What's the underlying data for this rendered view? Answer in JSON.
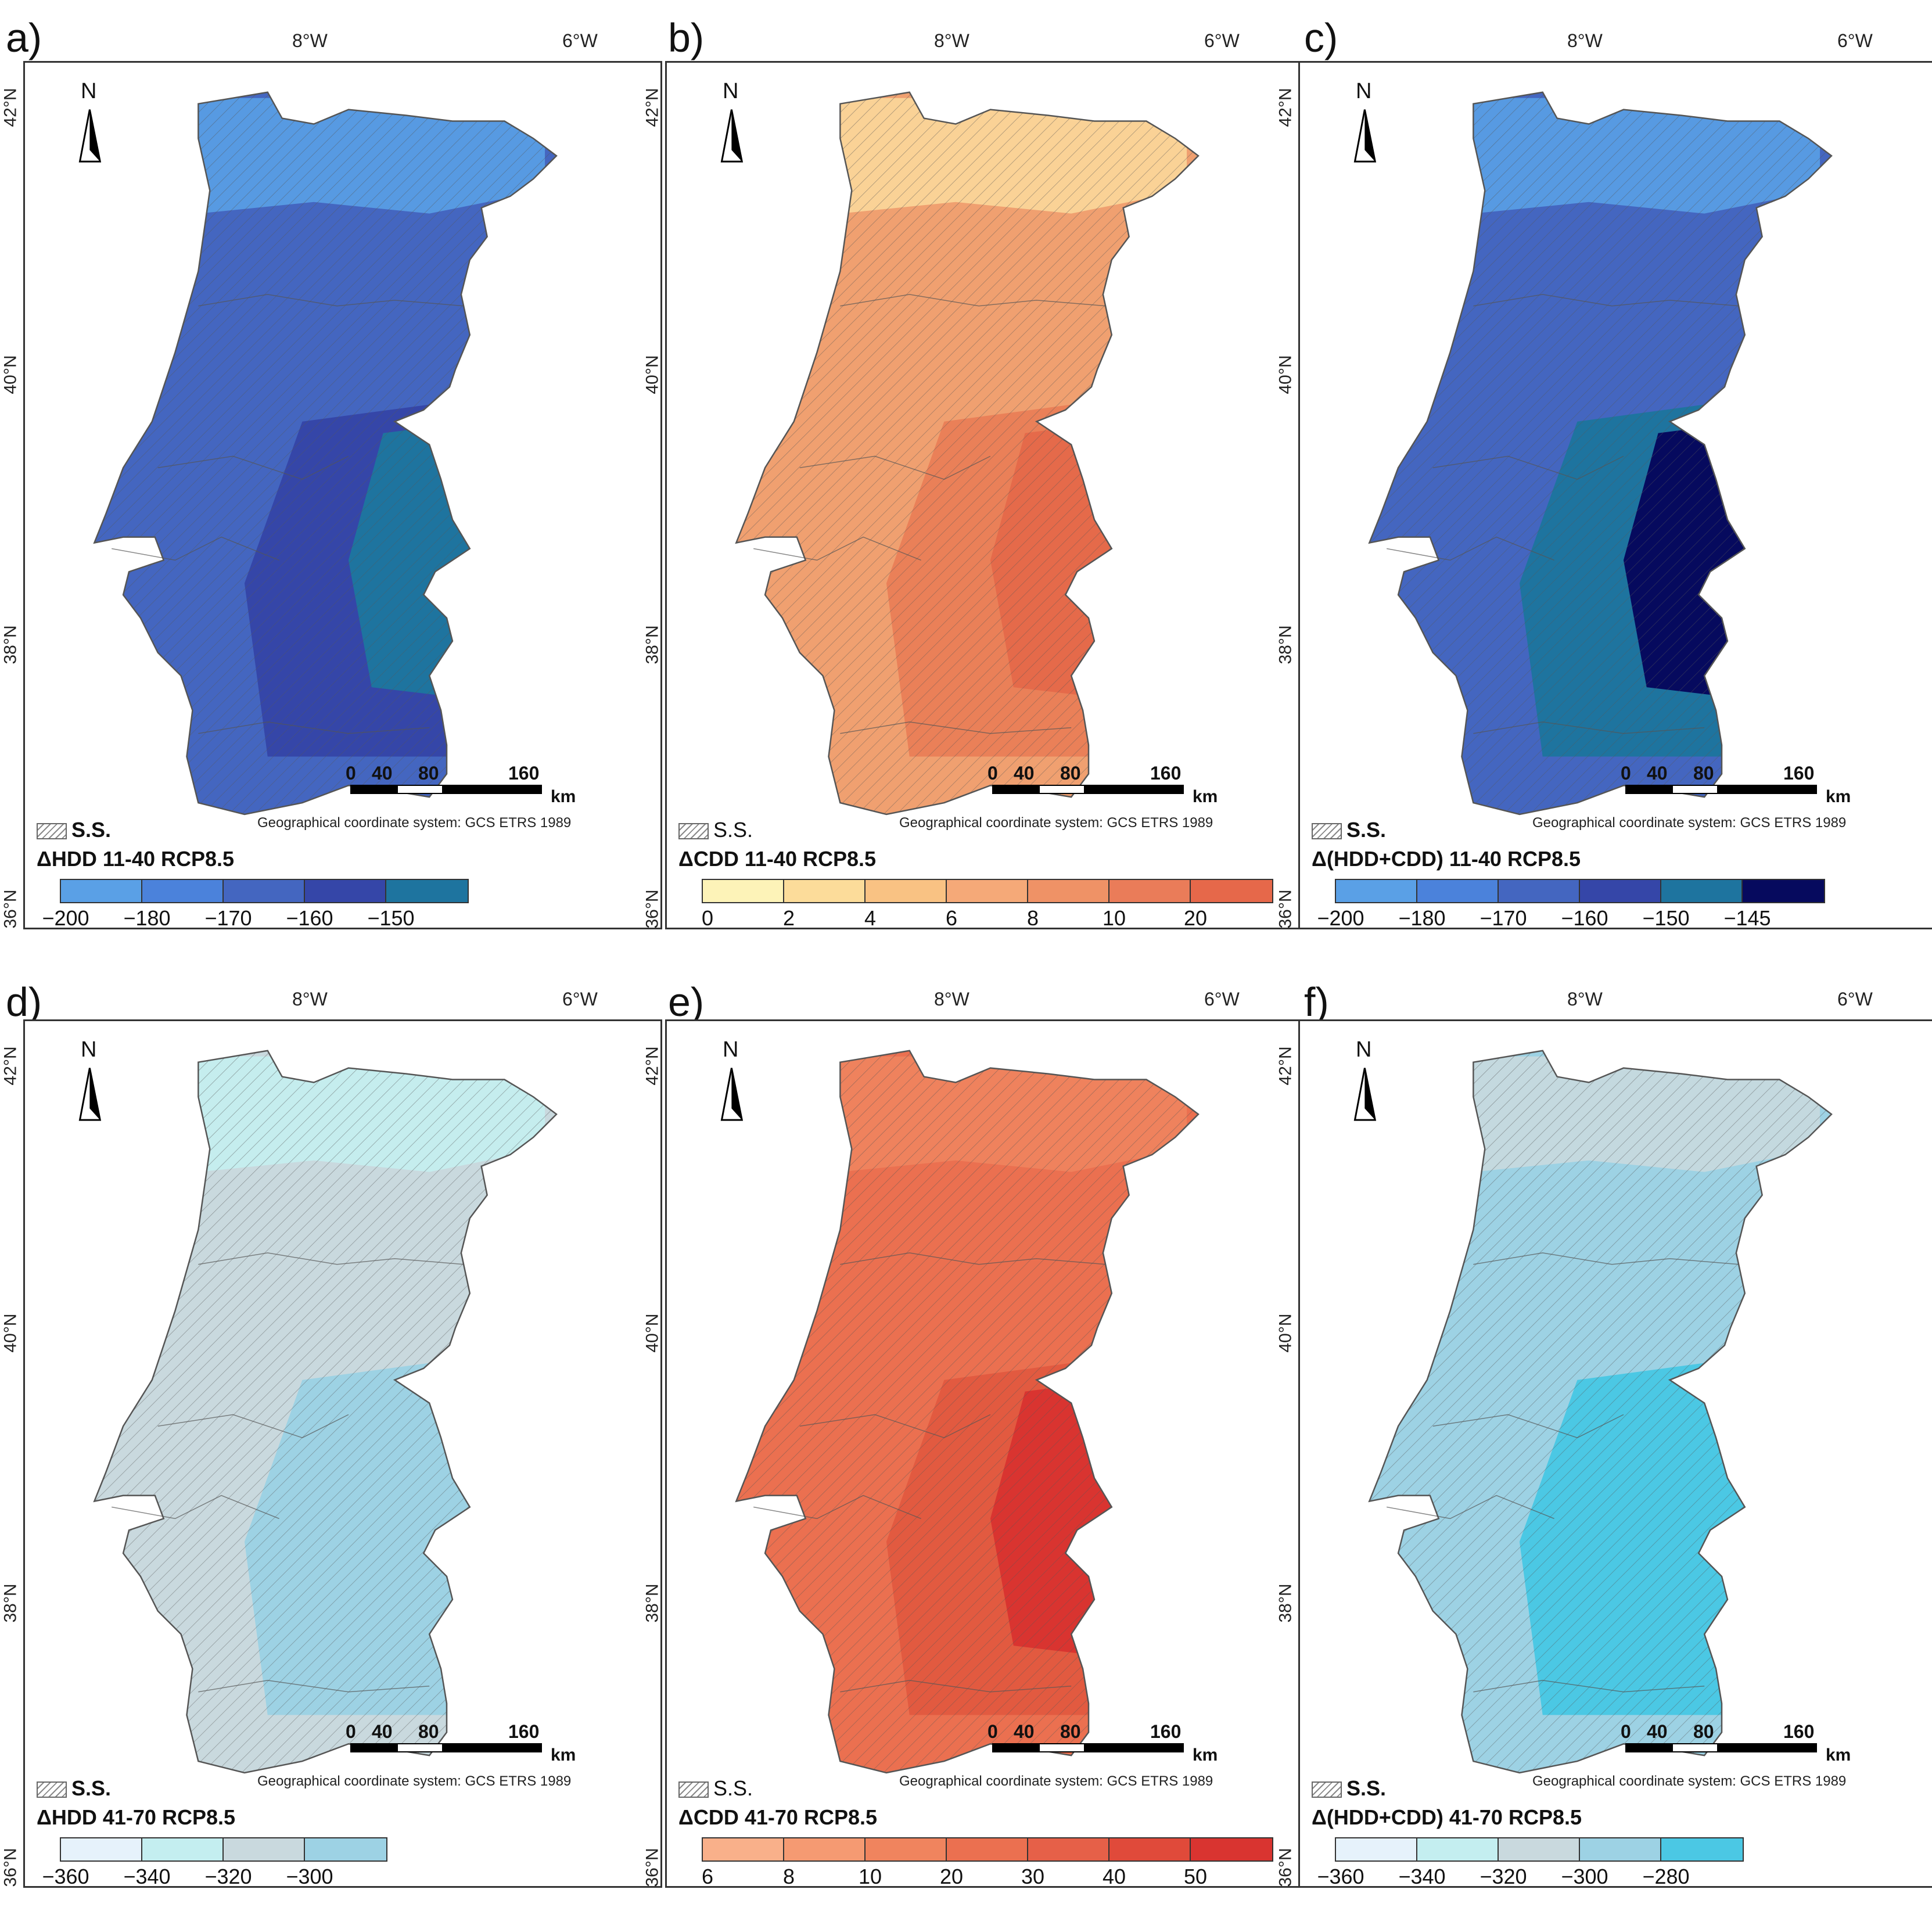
{
  "axis": {
    "lon": [
      "8°W",
      "6°W"
    ],
    "lat": [
      "42°N",
      "40°N",
      "38°N",
      "36°N"
    ]
  },
  "north_label": "N",
  "scale_bar": {
    "ticks": [
      "0",
      "40",
      "80",
      "160"
    ],
    "unit": "km"
  },
  "coord_system": "Geographical coordinate system: GCS ETRS 1989",
  "ss_label": "S.S.",
  "panels": [
    {
      "label": "a)",
      "title": "ΔHDD 11-40 RCP8.5",
      "legend_ticks": [
        "−200",
        "−180",
        "−170",
        "−160",
        "−150"
      ],
      "legend_colors": [
        "#5aa0e6",
        "#4b82db",
        "#4466c0",
        "#3546a8",
        "#1e749f"
      ],
      "base": "#4466c0",
      "accent": "#3546a8",
      "hot": "#1e749f",
      "light": "#5aa0e6"
    },
    {
      "label": "b)",
      "title": "ΔCDD 11-40 RCP8.5",
      "legend_ticks": [
        "0",
        "2",
        "4",
        "6",
        "8",
        "10",
        "20"
      ],
      "legend_colors": [
        "#fdf3b8",
        "#fcdc9a",
        "#f9c283",
        "#f5a978",
        "#ef9266",
        "#ea7c59",
        "#e6684a"
      ],
      "base": "#f0a070",
      "accent": "#ea8058",
      "hot": "#e56a4a",
      "light": "#fbd79a"
    },
    {
      "label": "c)",
      "title": "Δ(HDD+CDD) 11-40 RCP8.5",
      "legend_ticks": [
        "−200",
        "−180",
        "−170",
        "−160",
        "−150",
        "−145"
      ],
      "legend_colors": [
        "#5aa0e6",
        "#4b82db",
        "#4466c0",
        "#3546a8",
        "#1e749f",
        "#060a5e"
      ],
      "base": "#4466c0",
      "accent": "#1e749f",
      "hot": "#060a5e",
      "light": "#5aa0e6"
    },
    {
      "label": "d)",
      "title": "ΔHDD 41-70 RCP8.5",
      "legend_ticks": [
        "−360",
        "−340",
        "−320",
        "−300"
      ],
      "legend_colors": [
        "#e6f2fb",
        "#c4eef0",
        "#c9d9de",
        "#9dd2e4"
      ],
      "base": "#c9d9de",
      "accent": "#9dd2e4",
      "hot": "#9dd2e4",
      "light": "#c4eef0"
    },
    {
      "label": "e)",
      "title": "ΔCDD 41-70 RCP8.5",
      "legend_ticks": [
        "6",
        "8",
        "10",
        "20",
        "30",
        "40",
        "50"
      ],
      "legend_colors": [
        "#f9b08a",
        "#f59a72",
        "#f0845e",
        "#eb7050",
        "#e66048",
        "#e04a3a",
        "#d93430"
      ],
      "base": "#eb7050",
      "accent": "#e25a40",
      "hot": "#d93430",
      "light": "#f0845e"
    },
    {
      "label": "f)",
      "title": "Δ(HDD+CDD) 41-70 RCP8.5",
      "legend_ticks": [
        "−360",
        "−340",
        "−320",
        "−300",
        "−280"
      ],
      "legend_colors": [
        "#e6f2fb",
        "#c4eef0",
        "#c9d9de",
        "#9dd2e4",
        "#4bc8e4"
      ],
      "base": "#9dd2e4",
      "accent": "#4bc8e4",
      "hot": "#4bc8e4",
      "light": "#c9d9de"
    }
  ]
}
